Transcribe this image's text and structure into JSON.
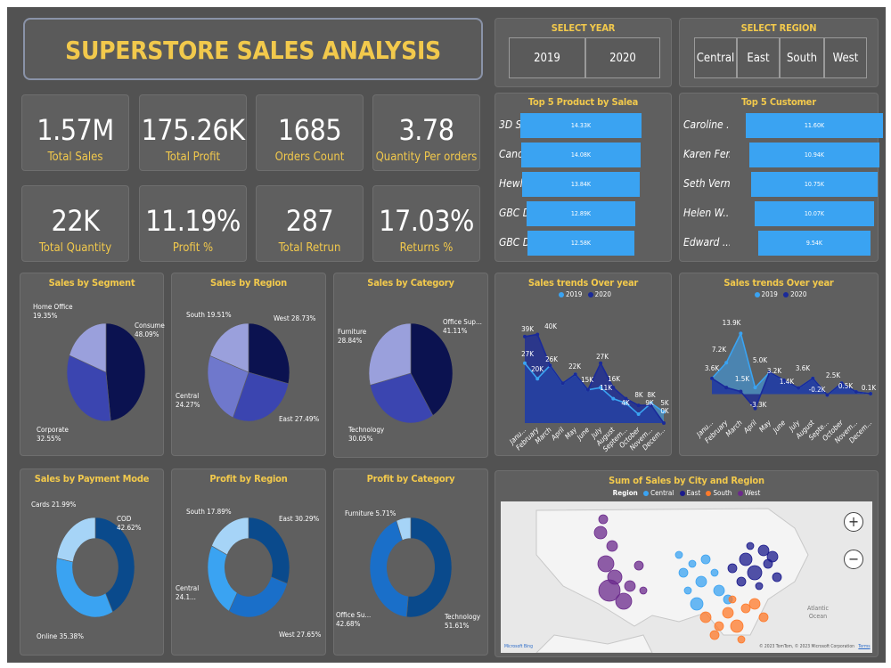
{
  "title": "SUPERSTORE SALES ANALYSIS",
  "year_filter": {
    "title": "SELECT YEAR",
    "options": [
      "2019",
      "2020"
    ]
  },
  "region_filter": {
    "title": "SELECT REGION",
    "options": [
      "Central",
      "East",
      "South",
      "West"
    ]
  },
  "kpis": [
    {
      "value": "1.57M",
      "label": "Total Sales"
    },
    {
      "value": "175.26K",
      "label": "Total Profit"
    },
    {
      "value": "1685",
      "label": "Orders Count"
    },
    {
      "value": "3.78",
      "label": "Quantity Per orders"
    },
    {
      "value": "22K",
      "label": "Total Quantity"
    },
    {
      "value": "11.19%",
      "label": "Profit %"
    },
    {
      "value": "287",
      "label": "Total Retrun"
    },
    {
      "value": "17.03%",
      "label": "Returns %"
    }
  ],
  "colors": {
    "accent": "#f2c94c",
    "bar": "#3aa3f2",
    "series_2019": "#3aa3f2",
    "series_2020": "#1a2a99",
    "central": "#3aa3f2",
    "east": "#1a1a8c",
    "south": "#ff7a2a",
    "west": "#6b2a8c"
  },
  "top_products": {
    "title": "Top 5 Product by Salea",
    "items": [
      {
        "name": "3D Syst...",
        "label": "14.33K",
        "value": 14.33
      },
      {
        "name": "Canon i...",
        "label": "14.08K",
        "value": 14.08
      },
      {
        "name": "Hewlett...",
        "label": "13.84K",
        "value": 13.84
      },
      {
        "name": "GBC Do...",
        "label": "12.89K",
        "value": 12.89
      },
      {
        "name": "GBC Do...",
        "label": "12.58K",
        "value": 12.58
      }
    ]
  },
  "top_customers": {
    "title": "Top 5 Customer",
    "items": [
      {
        "name": "Caroline ...",
        "label": "11.60K",
        "value": 11.6
      },
      {
        "name": "Karen Fer...",
        "label": "10.94K",
        "value": 10.94
      },
      {
        "name": "Seth Vern...",
        "label": "10.75K",
        "value": 10.75
      },
      {
        "name": "Helen W...",
        "label": "10.07K",
        "value": 10.07
      },
      {
        "name": "Edward ...",
        "label": "9.54K",
        "value": 9.54
      }
    ]
  },
  "months": [
    "Janu...",
    "February",
    "March",
    "April",
    "May",
    "June",
    "July",
    "August",
    "Septem...",
    "October",
    "Novem...",
    "Decem..."
  ],
  "months2": [
    "Janu...",
    "February",
    "March",
    "April",
    "May",
    "June",
    "July",
    "August",
    "Septe...",
    "October",
    "Novem...",
    "Decem..."
  ],
  "pies": [
    {
      "id": "segment",
      "title": "Sales by Segment",
      "donut": false,
      "slices": [
        {
          "name": "Consumer",
          "value": 48.09,
          "label": "Consumer\n48.09%",
          "color": "#0b1250"
        },
        {
          "name": "Corporate",
          "value": 32.55,
          "label": "Corporate\n32.55%",
          "color": "#3b45b0"
        },
        {
          "name": "Home Office",
          "value": 19.35,
          "label": "Home Office\n19.35%",
          "color": "#9aa0dc"
        }
      ]
    },
    {
      "id": "region",
      "title": "Sales by Region",
      "donut": false,
      "slices": [
        {
          "name": "West",
          "value": 28.73,
          "label": "West 28.73%",
          "color": "#0b1250"
        },
        {
          "name": "East",
          "value": 27.49,
          "label": "East 27.49%",
          "color": "#3b45b0"
        },
        {
          "name": "Central",
          "value": 24.27,
          "label": "Central\n24.27%",
          "color": "#6f78cc"
        },
        {
          "name": "South",
          "value": 19.51,
          "label": "South 19.51%",
          "color": "#9aa0dc"
        }
      ]
    },
    {
      "id": "category",
      "title": "Sales by Category",
      "donut": false,
      "slices": [
        {
          "name": "Office Sup...",
          "value": 41.11,
          "label": "Office Sup...\n41.11%",
          "color": "#0b1250"
        },
        {
          "name": "Technology",
          "value": 30.05,
          "label": "Technology\n30.05%",
          "color": "#3b45b0"
        },
        {
          "name": "Furniture",
          "value": 28.84,
          "label": "Furniture\n28.84%",
          "color": "#9aa0dc"
        }
      ]
    },
    {
      "id": "payment",
      "title": "Sales by Payment Mode",
      "donut": true,
      "slices": [
        {
          "name": "COD",
          "value": 42.62,
          "label": "COD\n42.62%",
          "color": "#0a4a8c"
        },
        {
          "name": "Online",
          "value": 35.38,
          "label": "Online 35.38%",
          "color": "#3aa3f2"
        },
        {
          "name": "Cards",
          "value": 21.99,
          "label": "Cards 21.99%",
          "color": "#a6d4f7"
        }
      ]
    },
    {
      "id": "profit_region",
      "title": "Profit by Region",
      "donut": true,
      "slices": [
        {
          "name": "East",
          "value": 30.29,
          "label": "East 30.29%",
          "color": "#0a4a8c"
        },
        {
          "name": "West",
          "value": 27.65,
          "label": "West 27.65%",
          "color": "#1a6fc9"
        },
        {
          "name": "Central",
          "value": 24.17,
          "label": "Central\n24.1...",
          "color": "#3aa3f2"
        },
        {
          "name": "South",
          "value": 17.89,
          "label": "South 17.89%",
          "color": "#a6d4f7"
        }
      ]
    },
    {
      "id": "profit_category",
      "title": "Profit by Category",
      "donut": true,
      "slices": [
        {
          "name": "Technology",
          "value": 51.61,
          "label": "Technology\n51.61%",
          "color": "#0a4a8c"
        },
        {
          "name": "Office Su...",
          "value": 42.68,
          "label": "Office Su...\n42.68%",
          "color": "#1a6fc9"
        },
        {
          "name": "Furniture",
          "value": 5.71,
          "label": "Furniture 5.71%",
          "color": "#a6d4f7"
        }
      ]
    }
  ],
  "trend1": {
    "title": "Sales trends Over year",
    "legend": [
      "2019",
      "2020"
    ],
    "ylim": [
      0,
      45
    ],
    "series": [
      {
        "name": "2019",
        "values": [
          27,
          20,
          26,
          18,
          22,
          15,
          16,
          11,
          9,
          4,
          9,
          5
        ]
      },
      {
        "name": "2020",
        "values": [
          39,
          40,
          26,
          18,
          22,
          15,
          27,
          16,
          11,
          8,
          8,
          0
        ]
      }
    ],
    "labels": [
      "39K",
      "40K",
      "27K",
      "20K",
      "26K",
      "22K",
      "15K",
      "27K",
      "16K",
      "11K",
      "4K",
      "8K",
      "8K",
      "9K",
      "5K",
      "0K"
    ]
  },
  "trend2": {
    "title": "Sales trends Over year",
    "legend": [
      "2019",
      "2020"
    ],
    "ylim": [
      -5,
      15
    ],
    "series": [
      {
        "name": "2019",
        "values": [
          3.6,
          7.2,
          13.9,
          1.5,
          5.0,
          3.2,
          1.4,
          3.6,
          -0.2,
          2.5,
          0.5,
          0.1
        ]
      },
      {
        "name": "2020",
        "values": [
          3.6,
          1.5,
          0.6,
          -3.3,
          5.0,
          3.2,
          1.4,
          3.6,
          -0.2,
          2.5,
          0.5,
          0.1
        ]
      }
    ],
    "labels": [
      "3.6K",
      "7.2K",
      "13.9K",
      "1.5K",
      "-3.3K",
      "5.0K",
      "3.2K",
      "1.4K",
      "3.6K",
      "-0.2K",
      "2.5K",
      "0.5K",
      "0.1K"
    ]
  },
  "map": {
    "title": "Sum of Sales by City and Region",
    "legend_title": "Region",
    "legend": [
      "Central",
      "East",
      "South",
      "West"
    ],
    "zoom_in": "+",
    "zoom_out": "−",
    "ocean_label": "Atlantic\nOcean",
    "attribution": "© 2023 TomTom, © 2023 Microsoft Corporation",
    "terms": "Terms",
    "brand": "Microsoft Bing"
  }
}
